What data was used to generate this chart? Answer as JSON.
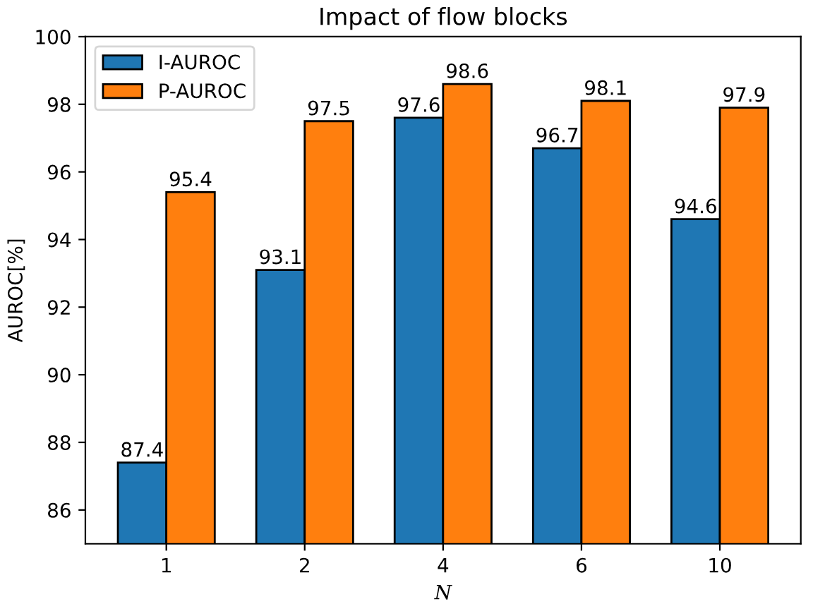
{
  "chart_data": {
    "type": "bar",
    "title": "Impact of flow blocks",
    "xlabel": "N",
    "ylabel": "AUROC[%]",
    "categories": [
      "1",
      "2",
      "4",
      "6",
      "10"
    ],
    "series": [
      {
        "name": "I-AUROC",
        "color": "#1f77b4",
        "values": [
          87.4,
          93.1,
          97.6,
          96.7,
          94.6
        ]
      },
      {
        "name": "P-AUROC",
        "color": "#ff7f0e",
        "values": [
          95.4,
          97.5,
          98.6,
          98.1,
          97.9
        ]
      }
    ],
    "ylim": [
      85,
      100
    ],
    "yticks": [
      86,
      88,
      90,
      92,
      94,
      96,
      98,
      100
    ],
    "data_labels": true,
    "legend": "top left",
    "grid": false
  }
}
